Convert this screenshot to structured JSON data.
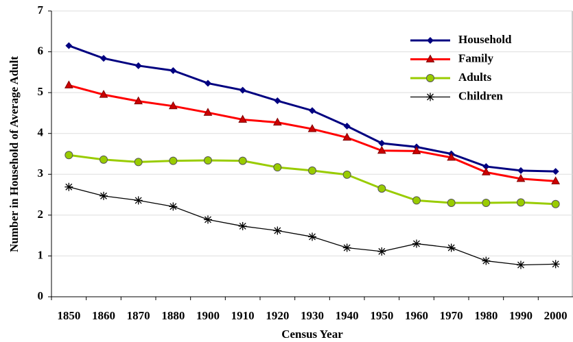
{
  "chart_data": {
    "type": "line",
    "x_label": "Census Year",
    "y_label": "Number in Household of Average Adult",
    "categories": [
      "1850",
      "1860",
      "1870",
      "1880",
      "1900",
      "1910",
      "1920",
      "1930",
      "1940",
      "1950",
      "1960",
      "1970",
      "1980",
      "1990",
      "2000"
    ],
    "series": [
      {
        "name": "Household",
        "color": "#000080",
        "marker": "diamond",
        "values": [
          6.15,
          5.84,
          5.66,
          5.54,
          5.23,
          5.06,
          4.8,
          4.56,
          4.18,
          3.76,
          3.67,
          3.5,
          3.19,
          3.09,
          3.07
        ]
      },
      {
        "name": "Family",
        "color": "#ff0000",
        "marker": "triangle",
        "values": [
          5.18,
          4.95,
          4.79,
          4.67,
          4.51,
          4.34,
          4.27,
          4.11,
          3.9,
          3.58,
          3.57,
          3.41,
          3.05,
          2.89,
          2.83
        ]
      },
      {
        "name": "Adults",
        "color": "#99cc00",
        "marker": "circle",
        "values": [
          3.47,
          3.36,
          3.3,
          3.33,
          3.34,
          3.33,
          3.17,
          3.09,
          2.99,
          2.65,
          2.36,
          2.3,
          2.3,
          2.31,
          2.27
        ]
      },
      {
        "name": "Children",
        "color": "#000000",
        "marker": "asterisk",
        "values": [
          2.69,
          2.47,
          2.36,
          2.21,
          1.89,
          1.73,
          1.62,
          1.47,
          1.2,
          1.11,
          1.3,
          1.2,
          0.88,
          0.78,
          0.8
        ]
      }
    ],
    "ylim": [
      0,
      7
    ],
    "yticks": [
      0,
      1,
      2,
      3,
      4,
      5,
      6,
      7
    ],
    "grid": true,
    "legend": "upper right"
  }
}
